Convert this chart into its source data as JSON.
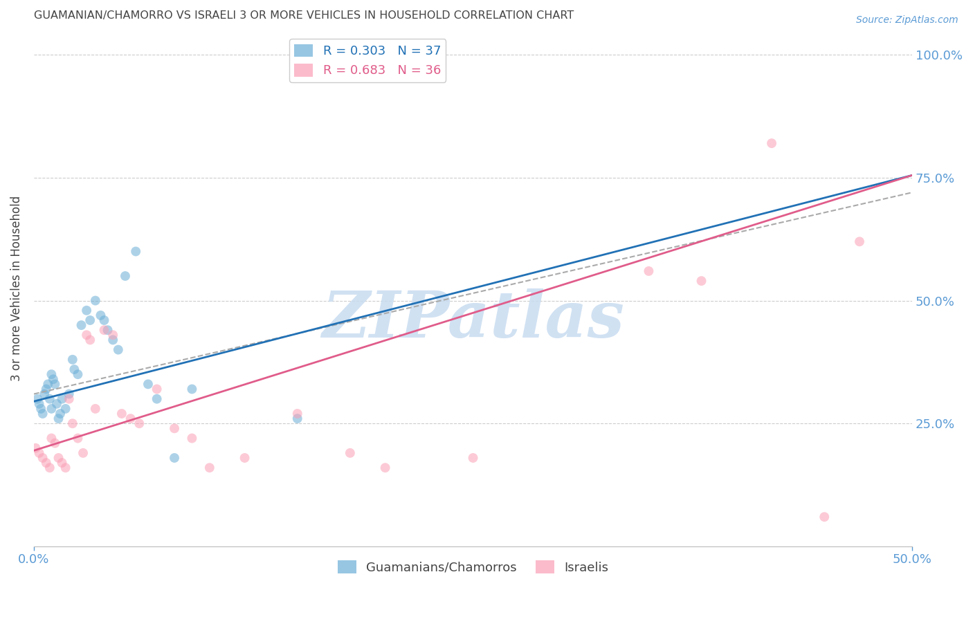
{
  "title": "GUAMANIAN/CHAMORRO VS ISRAELI 3 OR MORE VEHICLES IN HOUSEHOLD CORRELATION CHART",
  "source": "Source: ZipAtlas.com",
  "ylabel": "3 or more Vehicles in Household",
  "x_ticklabels": [
    "0.0%",
    "50.0%"
  ],
  "y_ticklabels_right": [
    "100.0%",
    "75.0%",
    "50.0%",
    "25.0%"
  ],
  "xlim": [
    0.0,
    0.5
  ],
  "ylim": [
    0.0,
    1.05
  ],
  "legend1_r": "R = 0.303",
  "legend1_n": "N = 37",
  "legend2_r": "R = 0.683",
  "legend2_n": "N = 36",
  "blue_color": "#6baed6",
  "pink_color": "#fa9fb5",
  "blue_line_color": "#2171b5",
  "pink_line_color": "#e05c8a",
  "dashed_line_color": "#aaaaaa",
  "label1": "Guamanians/Chamorros",
  "label2": "Israelis",
  "blue_scatter_x": [
    0.002,
    0.003,
    0.004,
    0.005,
    0.006,
    0.007,
    0.008,
    0.009,
    0.01,
    0.01,
    0.011,
    0.012,
    0.013,
    0.014,
    0.015,
    0.016,
    0.018,
    0.02,
    0.022,
    0.023,
    0.025,
    0.027,
    0.03,
    0.032,
    0.035,
    0.038,
    0.04,
    0.042,
    0.045,
    0.048,
    0.052,
    0.058,
    0.065,
    0.07,
    0.08,
    0.09,
    0.15
  ],
  "blue_scatter_y": [
    0.3,
    0.29,
    0.28,
    0.27,
    0.31,
    0.32,
    0.33,
    0.3,
    0.28,
    0.35,
    0.34,
    0.33,
    0.29,
    0.26,
    0.27,
    0.3,
    0.28,
    0.31,
    0.38,
    0.36,
    0.35,
    0.45,
    0.48,
    0.46,
    0.5,
    0.47,
    0.46,
    0.44,
    0.42,
    0.4,
    0.55,
    0.6,
    0.33,
    0.3,
    0.18,
    0.32,
    0.26
  ],
  "pink_scatter_x": [
    0.001,
    0.003,
    0.005,
    0.007,
    0.009,
    0.01,
    0.012,
    0.014,
    0.016,
    0.018,
    0.02,
    0.022,
    0.025,
    0.028,
    0.03,
    0.032,
    0.035,
    0.04,
    0.045,
    0.05,
    0.055,
    0.06,
    0.07,
    0.08,
    0.09,
    0.1,
    0.12,
    0.15,
    0.18,
    0.2,
    0.25,
    0.35,
    0.38,
    0.42,
    0.45,
    0.47
  ],
  "pink_scatter_y": [
    0.2,
    0.19,
    0.18,
    0.17,
    0.16,
    0.22,
    0.21,
    0.18,
    0.17,
    0.16,
    0.3,
    0.25,
    0.22,
    0.19,
    0.43,
    0.42,
    0.28,
    0.44,
    0.43,
    0.27,
    0.26,
    0.25,
    0.32,
    0.24,
    0.22,
    0.16,
    0.18,
    0.27,
    0.19,
    0.16,
    0.18,
    0.56,
    0.54,
    0.82,
    0.06,
    0.62
  ],
  "blue_scatter_size": 100,
  "pink_scatter_size": 100,
  "watermark_text": "ZIPatlas",
  "watermark_color": "#c8dcf0",
  "background_color": "#ffffff",
  "grid_color": "#cccccc",
  "title_color": "#444444",
  "source_color": "#5b9bd5",
  "tick_label_color": "#5b9bd5",
  "ylabel_color": "#444444",
  "legend_text_blue": "#2171b5",
  "legend_text_pink": "#e05c8a",
  "legend_text_black": "#444444"
}
